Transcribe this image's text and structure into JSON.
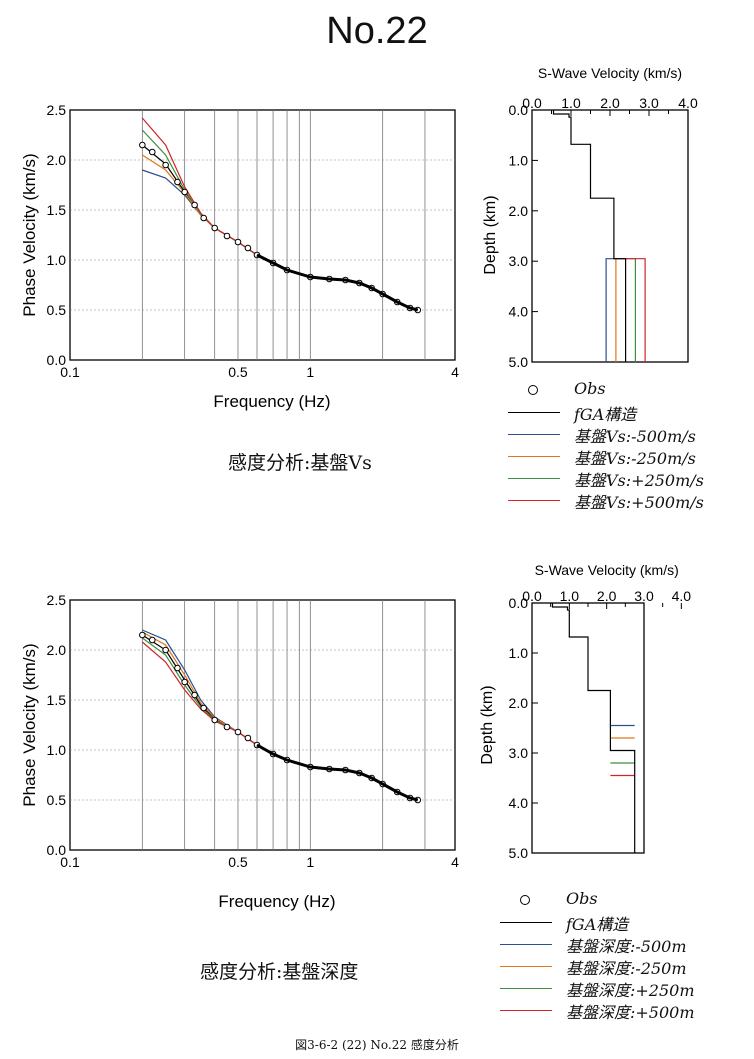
{
  "page_title": "No.22",
  "caption": "図3-6-2 (22)  No.22  感度分析",
  "panels": [
    {
      "subtitle": "感度分析:基盤Vs",
      "legend": [
        "Obs",
        "fGA構造",
        "基盤Vs:-500m/s",
        "基盤Vs:-250m/s",
        "基盤Vs:+250m/s",
        "基盤Vs:+500m/s"
      ]
    },
    {
      "subtitle": "感度分析:基盤深度",
      "legend": [
        "Obs",
        "fGA構造",
        "基盤深度:-500m",
        "基盤深度:-250m",
        "基盤深度:+250m",
        "基盤深度:+500m"
      ]
    }
  ],
  "colors": {
    "fga": "#000000",
    "minus500": "#2b4f8f",
    "minus250": "#e0761a",
    "plus250": "#3c8f3c",
    "plus500": "#d0252a"
  },
  "chart_data": [
    {
      "type": "line",
      "xlabel": "Frequency (Hz)",
      "ylabel": "Phase Velocity (km/s)",
      "xscale": "log",
      "xlim": [
        0.1,
        4
      ],
      "ylim": [
        0,
        2.5
      ],
      "x_ticks": [
        "0.1",
        "0.5",
        "1",
        "4"
      ],
      "y_ticks": [
        "0.0",
        "0.5",
        "1.0",
        "1.5",
        "2.0",
        "2.5"
      ],
      "obs": {
        "x": [
          0.2,
          0.22,
          0.25,
          0.28,
          0.3,
          0.33,
          0.36,
          0.4,
          0.45,
          0.5,
          0.55,
          0.6,
          0.7,
          0.8,
          1.0,
          1.2,
          1.4,
          1.6,
          1.8,
          2.0,
          2.3,
          2.6,
          2.8
        ],
        "y": [
          2.15,
          2.08,
          1.95,
          1.78,
          1.68,
          1.55,
          1.42,
          1.32,
          1.24,
          1.18,
          1.12,
          1.05,
          0.97,
          0.9,
          0.83,
          0.81,
          0.8,
          0.77,
          0.72,
          0.66,
          0.58,
          0.52,
          0.5
        ]
      },
      "series": [
        {
          "name": "fGA構造",
          "color": "fga",
          "x": [
            0.2,
            0.25,
            0.3,
            0.35,
            0.4,
            0.5,
            0.6,
            0.8,
            1.0,
            1.3,
            1.6,
            2.0,
            2.4,
            2.8
          ],
          "y": [
            2.15,
            1.96,
            1.68,
            1.45,
            1.32,
            1.18,
            1.05,
            0.9,
            0.83,
            0.81,
            0.77,
            0.66,
            0.56,
            0.5
          ]
        },
        {
          "name": "基盤Vs:-500m/s",
          "color": "minus500",
          "x": [
            0.2,
            0.25,
            0.3,
            0.35,
            0.4,
            0.5,
            0.6,
            0.8,
            1.0,
            1.3,
            1.6,
            2.0,
            2.4,
            2.8
          ],
          "y": [
            1.9,
            1.82,
            1.65,
            1.45,
            1.32,
            1.18,
            1.05,
            0.9,
            0.83,
            0.81,
            0.77,
            0.66,
            0.56,
            0.5
          ]
        },
        {
          "name": "基盤Vs:-250m/s",
          "color": "minus250",
          "x": [
            0.2,
            0.25,
            0.3,
            0.35,
            0.4,
            0.5,
            0.6,
            0.8,
            1.0,
            1.3,
            1.6,
            2.0,
            2.4,
            2.8
          ],
          "y": [
            2.05,
            1.9,
            1.67,
            1.45,
            1.32,
            1.18,
            1.05,
            0.9,
            0.83,
            0.81,
            0.77,
            0.66,
            0.56,
            0.5
          ]
        },
        {
          "name": "基盤Vs:+250m/s",
          "color": "plus250",
          "x": [
            0.2,
            0.25,
            0.3,
            0.35,
            0.4,
            0.5,
            0.6,
            0.8,
            1.0,
            1.3,
            1.6,
            2.0,
            2.4,
            2.8
          ],
          "y": [
            2.3,
            2.05,
            1.7,
            1.46,
            1.32,
            1.18,
            1.05,
            0.9,
            0.83,
            0.81,
            0.77,
            0.66,
            0.56,
            0.5
          ]
        },
        {
          "name": "基盤Vs:+500m/s",
          "color": "plus500",
          "x": [
            0.2,
            0.25,
            0.3,
            0.35,
            0.4,
            0.5,
            0.6,
            0.8,
            1.0,
            1.3,
            1.6,
            2.0,
            2.4,
            2.8
          ],
          "y": [
            2.42,
            2.15,
            1.73,
            1.47,
            1.32,
            1.18,
            1.05,
            0.9,
            0.83,
            0.81,
            0.77,
            0.66,
            0.56,
            0.5
          ]
        }
      ]
    },
    {
      "type": "line",
      "title": "S-Wave Velocity (km/s)",
      "xlabel": "S-Wave Velocity (km/s)",
      "ylabel": "Depth (km)",
      "xlim": [
        0,
        4
      ],
      "ylim": [
        0,
        5
      ],
      "y_inverted": true,
      "x_ticks": [
        "0.0",
        "1.0",
        "2.0",
        "3.0",
        "4.0"
      ],
      "y_ticks": [
        "0.0",
        "1.0",
        "2.0",
        "3.0",
        "4.0",
        "5.0"
      ],
      "x_minor_ticks": [
        "0.5",
        "1.5",
        "2.5",
        "3.5"
      ],
      "series": [
        {
          "name": "fGA構造",
          "color": "fga",
          "x": [
            0.55,
            0.55,
            0.95,
            0.95,
            1.0,
            1.0,
            1.5,
            1.5,
            2.1,
            2.1,
            2.4,
            2.4
          ],
          "y": [
            0,
            0.08,
            0.08,
            0.14,
            0.14,
            0.68,
            0.68,
            1.75,
            1.75,
            2.95,
            2.95,
            5.0
          ]
        },
        {
          "name": "基盤Vs:-500m/s",
          "color": "minus500",
          "x": [
            2.1,
            1.9,
            1.9
          ],
          "y": [
            2.95,
            2.95,
            5.0
          ]
        },
        {
          "name": "基盤Vs:-250m/s",
          "color": "minus250",
          "x": [
            2.1,
            2.15,
            2.15
          ],
          "y": [
            2.95,
            2.95,
            5.0
          ]
        },
        {
          "name": "基盤Vs:+250m/s",
          "color": "plus250",
          "x": [
            2.1,
            2.65,
            2.65
          ],
          "y": [
            2.95,
            2.95,
            5.0
          ]
        },
        {
          "name": "基盤Vs:+500m/s",
          "color": "plus500",
          "x": [
            2.1,
            2.9,
            2.9
          ],
          "y": [
            2.95,
            2.95,
            5.0
          ]
        }
      ]
    },
    {
      "type": "line",
      "xlabel": "Frequency (Hz)",
      "ylabel": "Phase Velocity (km/s)",
      "xscale": "log",
      "xlim": [
        0.1,
        4
      ],
      "ylim": [
        0,
        2.5
      ],
      "x_ticks": [
        "0.1",
        "0.5",
        "1",
        "4"
      ],
      "y_ticks": [
        "0.0",
        "0.5",
        "1.0",
        "1.5",
        "2.0",
        "2.5"
      ],
      "obs": {
        "x": [
          0.2,
          0.22,
          0.25,
          0.28,
          0.3,
          0.33,
          0.36,
          0.4,
          0.45,
          0.5,
          0.55,
          0.6,
          0.7,
          0.8,
          1.0,
          1.2,
          1.4,
          1.6,
          1.8,
          2.0,
          2.3,
          2.6,
          2.8
        ],
        "y": [
          2.15,
          2.1,
          2.0,
          1.82,
          1.68,
          1.55,
          1.42,
          1.3,
          1.23,
          1.18,
          1.12,
          1.05,
          0.96,
          0.9,
          0.83,
          0.81,
          0.8,
          0.77,
          0.72,
          0.66,
          0.58,
          0.52,
          0.5
        ]
      },
      "series": [
        {
          "name": "fGA構造",
          "color": "fga",
          "x": [
            0.2,
            0.25,
            0.3,
            0.35,
            0.4,
            0.5,
            0.6,
            0.8,
            1.0,
            1.3,
            1.6,
            2.0,
            2.4,
            2.8
          ],
          "y": [
            2.15,
            2.0,
            1.7,
            1.45,
            1.31,
            1.18,
            1.05,
            0.9,
            0.83,
            0.81,
            0.77,
            0.66,
            0.56,
            0.5
          ]
        },
        {
          "name": "基盤深度:-500m",
          "color": "minus500",
          "x": [
            0.2,
            0.25,
            0.3,
            0.35,
            0.4,
            0.5,
            0.6,
            0.8,
            1.0,
            1.3,
            1.6,
            2.0,
            2.4,
            2.8
          ],
          "y": [
            2.2,
            2.1,
            1.8,
            1.5,
            1.33,
            1.18,
            1.05,
            0.9,
            0.83,
            0.81,
            0.77,
            0.66,
            0.56,
            0.5
          ]
        },
        {
          "name": "基盤深度:-250m",
          "color": "minus250",
          "x": [
            0.2,
            0.25,
            0.3,
            0.35,
            0.4,
            0.5,
            0.6,
            0.8,
            1.0,
            1.3,
            1.6,
            2.0,
            2.4,
            2.8
          ],
          "y": [
            2.18,
            2.05,
            1.75,
            1.47,
            1.32,
            1.18,
            1.05,
            0.9,
            0.83,
            0.81,
            0.77,
            0.66,
            0.56,
            0.5
          ]
        },
        {
          "name": "基盤深度:+250m",
          "color": "plus250",
          "x": [
            0.2,
            0.25,
            0.3,
            0.35,
            0.4,
            0.5,
            0.6,
            0.8,
            1.0,
            1.3,
            1.6,
            2.0,
            2.4,
            2.8
          ],
          "y": [
            2.12,
            1.95,
            1.65,
            1.43,
            1.3,
            1.18,
            1.05,
            0.9,
            0.83,
            0.81,
            0.77,
            0.66,
            0.56,
            0.5
          ]
        },
        {
          "name": "基盤深度:+500m",
          "color": "plus500",
          "x": [
            0.2,
            0.25,
            0.3,
            0.35,
            0.4,
            0.5,
            0.6,
            0.8,
            1.0,
            1.3,
            1.6,
            2.0,
            2.4,
            2.8
          ],
          "y": [
            2.08,
            1.88,
            1.6,
            1.41,
            1.29,
            1.18,
            1.05,
            0.9,
            0.83,
            0.81,
            0.77,
            0.66,
            0.56,
            0.5
          ]
        }
      ]
    },
    {
      "type": "line",
      "title": "S-Wave Velocity (km/s)",
      "xlabel": "S-Wave Velocity (km/s)",
      "ylabel": "Depth (km)",
      "xlim": [
        0,
        4
      ],
      "ylim": [
        0,
        5
      ],
      "y_inverted": true,
      "x_ticks": [
        "0.0",
        "1.0",
        "2.0",
        "3.0",
        "4.0"
      ],
      "y_ticks": [
        "0.0",
        "1.0",
        "2.0",
        "3.0",
        "4.0",
        "5.0"
      ],
      "x_minor_ticks": [
        "0.5",
        "1.5",
        "2.5",
        "3.5"
      ],
      "series": [
        {
          "name": "fGA構造",
          "color": "fga",
          "x": [
            0.55,
            0.55,
            0.95,
            0.95,
            1.0,
            1.0,
            1.5,
            1.5,
            2.1,
            2.1,
            2.75,
            2.75
          ],
          "y": [
            0,
            0.08,
            0.08,
            0.14,
            0.14,
            0.68,
            0.68,
            1.75,
            1.75,
            2.95,
            2.95,
            5.0
          ]
        },
        {
          "name": "基盤深度:-500m",
          "color": "minus500",
          "x": [
            2.1,
            2.75
          ],
          "y": [
            2.45,
            2.45
          ]
        },
        {
          "name": "基盤深度:-250m",
          "color": "minus250",
          "x": [
            2.1,
            2.75
          ],
          "y": [
            2.7,
            2.7
          ]
        },
        {
          "name": "基盤深度:+250m",
          "color": "plus250",
          "x": [
            2.1,
            2.75
          ],
          "y": [
            3.2,
            3.2
          ]
        },
        {
          "name": "基盤深度:+500m",
          "color": "plus500",
          "x": [
            2.1,
            2.75
          ],
          "y": [
            3.45,
            3.45
          ]
        }
      ]
    }
  ]
}
